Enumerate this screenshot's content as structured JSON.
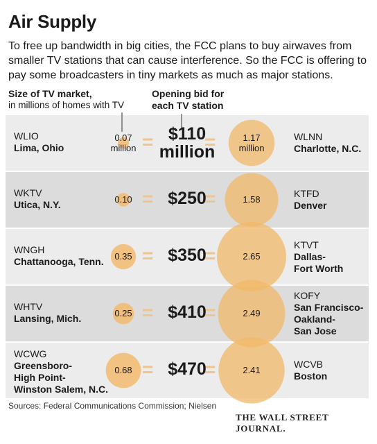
{
  "header": {
    "title": "Air Supply",
    "subtitle": "To free up bandwidth in big cities, the FCC plans to buy airwaves from smaller TV stations that can cause interference. So the FCC is offering to pay some broadcasters in tiny markets as much as major stations.",
    "left_label_bold": "Size of TV market,",
    "left_label_sub": "in millions of homes with TV",
    "mid_label_line1": "Opening bid for",
    "mid_label_line2": "each TV station"
  },
  "colors": {
    "bubble": "#f2b868",
    "row_light": "#ececec",
    "row_dark": "#dcdcdc",
    "equals": "#f0c48a"
  },
  "chart_data": {
    "type": "table",
    "title": "Air Supply",
    "rows": [
      {
        "small_call": "WLIO",
        "small_city": "Lima, Ohio",
        "small_value": 0.07,
        "small_label": "0.07",
        "small_unit": "million",
        "bid_label": "$110",
        "bid_unit": "million",
        "bid_millions": 110,
        "large_value": 1.17,
        "large_label": "1.17",
        "large_unit": "million",
        "large_call": "WLNN",
        "large_city": "Charlotte, N.C."
      },
      {
        "small_call": "WKTV",
        "small_city": "Utica, N.Y.",
        "small_value": 0.1,
        "small_label": "0.10",
        "bid_label": "$250",
        "bid_millions": 250,
        "large_value": 1.58,
        "large_label": "1.58",
        "large_call": "KTFD",
        "large_city": "Denver"
      },
      {
        "small_call": "WNGH",
        "small_city": "Chattanooga, Tenn.",
        "small_value": 0.35,
        "small_label": "0.35",
        "bid_label": "$350",
        "bid_millions": 350,
        "large_value": 2.65,
        "large_label": "2.65",
        "large_call": "KTVT",
        "large_city": "Dallas-\nFort Worth"
      },
      {
        "small_call": "WHTV",
        "small_city": "Lansing, Mich.",
        "small_value": 0.25,
        "small_label": "0.25",
        "bid_label": "$410",
        "bid_millions": 410,
        "large_value": 2.49,
        "large_label": "2.49",
        "large_call": "KOFY",
        "large_city": "San Francisco-\nOakland-\nSan Jose"
      },
      {
        "small_call": "WCWG",
        "small_city": "Greensboro-\nHigh Point-\nWinston Salem, N.C.",
        "small_value": 0.68,
        "small_label": "0.68",
        "bid_label": "$470",
        "bid_millions": 470,
        "large_value": 2.41,
        "large_label": "2.41",
        "large_call": "WCVB",
        "large_city": "Boston"
      }
    ]
  },
  "footer": {
    "source": "Sources: Federal Communications Commission; Nielsen",
    "logo": "THE WALL STREET JOURNAL."
  }
}
